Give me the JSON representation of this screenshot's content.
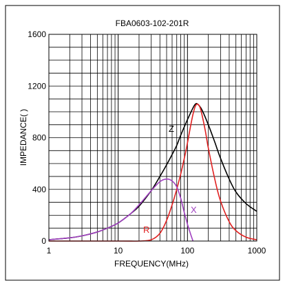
{
  "chart_data": {
    "type": "line",
    "title": "FBA0603-102-201R",
    "xlabel": "FREQUENCY(MHz)",
    "ylabel": "IMPEDANCE(  )",
    "xscale": "log",
    "xlim": [
      1,
      1000
    ],
    "ylim": [
      0,
      1600
    ],
    "x_ticks": [
      "1",
      "10",
      "100",
      "1000"
    ],
    "y_ticks": [
      "0",
      "400",
      "800",
      "1200",
      "1600"
    ],
    "grid": true,
    "colors": {
      "Z": "#000000",
      "R": "#e02020",
      "X": "#a040c0"
    },
    "series": [
      {
        "name": "Z",
        "x": [
          1,
          2,
          3,
          5,
          7,
          10,
          15,
          20,
          30,
          40,
          50,
          60,
          70,
          80,
          100,
          120,
          130,
          140,
          160,
          200,
          250,
          300,
          400,
          500,
          700,
          1000
        ],
        "y": [
          10,
          25,
          40,
          70,
          100,
          140,
          210,
          270,
          390,
          500,
          590,
          670,
          740,
          820,
          940,
          1030,
          1060,
          1060,
          1020,
          900,
          760,
          640,
          480,
          380,
          290,
          230
        ]
      },
      {
        "name": "R",
        "x": [
          1,
          10,
          20,
          30,
          40,
          50,
          60,
          70,
          80,
          90,
          100,
          110,
          120,
          130,
          140,
          150,
          160,
          180,
          200,
          250,
          300,
          400,
          500,
          700,
          1000
        ],
        "y": [
          0,
          0,
          0,
          10,
          60,
          160,
          280,
          400,
          520,
          640,
          760,
          880,
          980,
          1045,
          1060,
          1040,
          990,
          860,
          720,
          470,
          310,
          150,
          80,
          30,
          10
        ]
      },
      {
        "name": "X",
        "x": [
          1,
          2,
          3,
          5,
          7,
          10,
          15,
          20,
          25,
          30,
          40,
          50,
          60,
          70,
          80,
          90,
          100,
          110,
          120
        ],
        "y": [
          10,
          25,
          40,
          70,
          100,
          140,
          210,
          280,
          340,
          390,
          460,
          480,
          465,
          420,
          330,
          220,
          130,
          60,
          0
        ]
      }
    ]
  }
}
